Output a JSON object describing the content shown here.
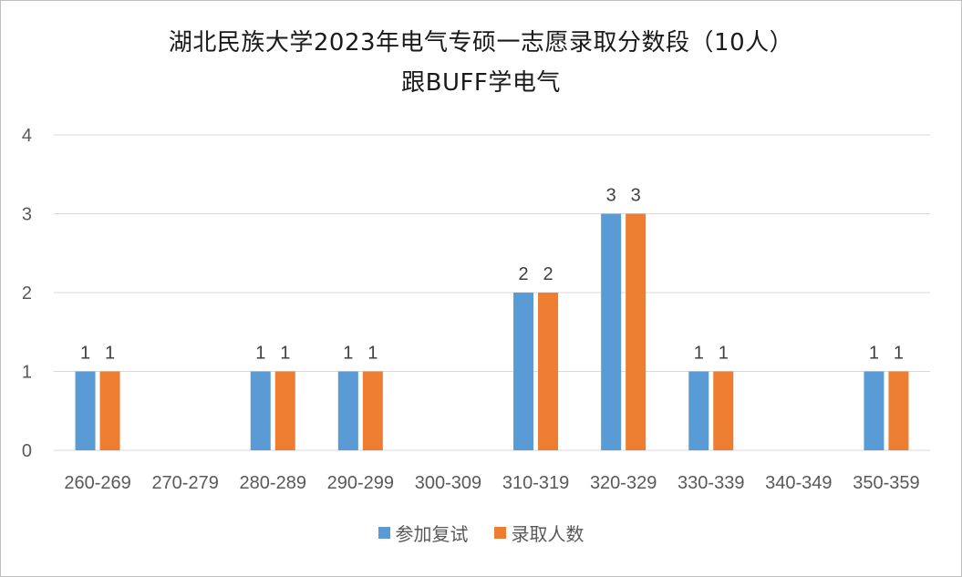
{
  "chart_data": {
    "type": "bar",
    "title": "湖北民族大学2023年电气专硕一志愿录取分数段（10人）",
    "subtitle": "跟BUFF学电气",
    "categories": [
      "260-269",
      "270-279",
      "280-289",
      "290-299",
      "300-309",
      "310-319",
      "320-329",
      "330-339",
      "340-349",
      "350-359"
    ],
    "series": [
      {
        "name": "参加复试",
        "color": "#5b9bd5",
        "values": [
          1,
          0,
          1,
          1,
          0,
          2,
          3,
          1,
          0,
          1
        ]
      },
      {
        "name": "录取人数",
        "color": "#ed7d31",
        "values": [
          1,
          0,
          1,
          1,
          0,
          2,
          3,
          1,
          0,
          1
        ]
      }
    ],
    "ylim": [
      0,
      4
    ],
    "yticks": [
      0,
      1,
      2,
      3,
      4
    ],
    "grid": true,
    "legend": "bottom",
    "data_labels": true
  }
}
